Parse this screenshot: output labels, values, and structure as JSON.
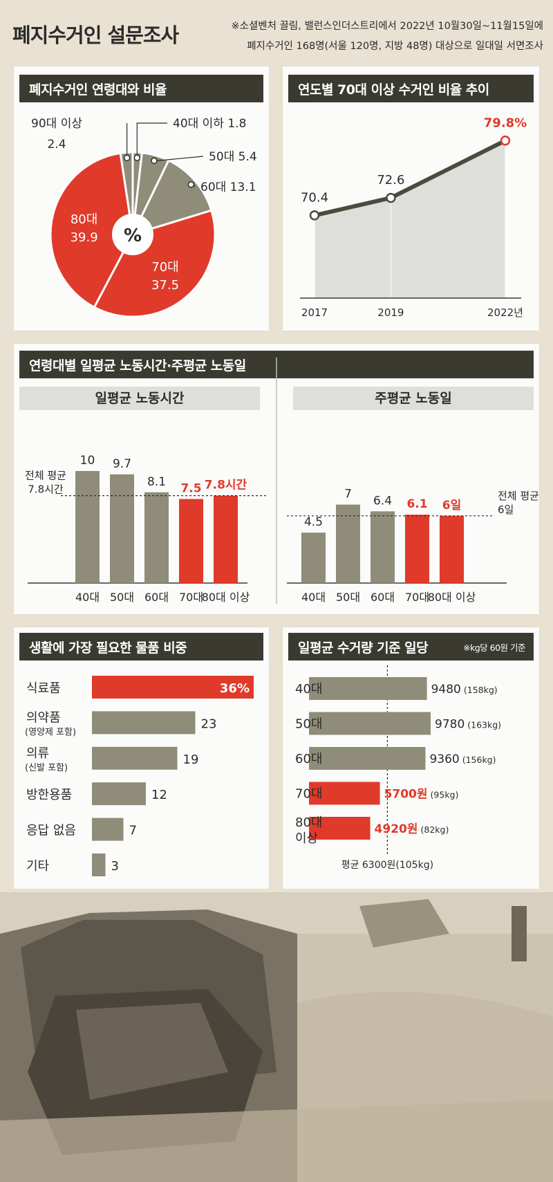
{
  "header": {
    "title": "폐지수거인 설문조사",
    "note_line1": "※소셜벤처 끌림, 밸런스인더스트리에서 2022년 10월30일~11월15일에",
    "note_line2": "폐지수거인 168명(서울 120명, 지방 48명) 대상으로 일대일 서면조사"
  },
  "colors": {
    "red": "#e03a2a",
    "olive": "#8f8c79",
    "dark": "#3b3a31",
    "grid": "#dededb"
  },
  "panels": {
    "age_share": {
      "title": "폐지수거인 연령대와 비율",
      "center_label": "%"
    },
    "trend": {
      "title": "연도별 70대 이상 수거인 비율 추이"
    },
    "labor": {
      "title": "연령대별 일평균 노동시간·주평균 노동일",
      "hours_title": "일평균 노동시간",
      "hours_avg_line1": "전체 평균",
      "hours_avg_line2": "7.8시간",
      "days_title": "주평균 노동일",
      "days_avg_line1": "전체 평균",
      "days_avg_line2": "6일"
    },
    "needs": {
      "title": "생활에 가장 필요한 물품 비중"
    },
    "wage": {
      "title": "일평균 수거량 기준 일당",
      "note": "※kg당 60원 기준",
      "avg_label": "평균 6300원(105kg)"
    }
  },
  "chart_data": [
    {
      "id": "age_share",
      "type": "pie",
      "title": "폐지수거인 연령대와 비율",
      "unit": "%",
      "slices": [
        {
          "label": "40대 이하",
          "value": 1.8,
          "text": "40대 이하 1.8"
        },
        {
          "label": "50대",
          "value": 5.4,
          "text": "50대 5.4"
        },
        {
          "label": "60대",
          "value": 13.1,
          "text": "60대 13.1"
        },
        {
          "label": "70대",
          "value": 37.5,
          "line1": "70대",
          "line2": "37.5"
        },
        {
          "label": "80대",
          "value": 39.9,
          "line1": "80대",
          "line2": "39.9"
        },
        {
          "label": "90대 이상",
          "value": 2.4,
          "line1": "90대 이상",
          "line2": "2.4"
        }
      ],
      "highlight": [
        "70대",
        "80대"
      ]
    },
    {
      "id": "trend",
      "type": "line",
      "title": "연도별 70대 이상 수거인 비율 추이",
      "x": [
        "2017",
        "2019",
        "2022년"
      ],
      "x_numeric": [
        2017,
        2019,
        2022
      ],
      "values": [
        70.4,
        72.6,
        79.8
      ],
      "value_labels": [
        "70.4",
        "72.6",
        "79.8%"
      ],
      "highlight_last": true
    },
    {
      "id": "hours",
      "type": "bar",
      "title": "일평균 노동시간",
      "categories": [
        "40대",
        "50대",
        "60대",
        "70대",
        "80대 이상"
      ],
      "values": [
        10,
        9.7,
        8.1,
        7.5,
        7.8
      ],
      "value_labels": [
        "10",
        "9.7",
        "8.1",
        "7.5",
        "7.8시간"
      ],
      "highlight": [
        false,
        false,
        false,
        true,
        true
      ],
      "average": 7.8,
      "ylim": [
        0,
        10.5
      ]
    },
    {
      "id": "days",
      "type": "bar",
      "title": "주평균 노동일",
      "categories": [
        "40대",
        "50대",
        "60대",
        "70대",
        "80대 이상"
      ],
      "values": [
        4.5,
        7,
        6.4,
        6.1,
        6
      ],
      "value_labels": [
        "4.5",
        "7",
        "6.4",
        "6.1",
        "6일"
      ],
      "highlight": [
        false,
        false,
        false,
        true,
        true
      ],
      "average": 6,
      "ylim": [
        0,
        10.5
      ]
    },
    {
      "id": "needs",
      "type": "bar",
      "orientation": "horizontal",
      "title": "생활에 가장 필요한 물품 비중",
      "items": [
        {
          "label": "식료품",
          "sub": "",
          "value": 36,
          "text": "36%",
          "highlight": true
        },
        {
          "label": "의약품",
          "sub": "(영양제 포함)",
          "value": 23,
          "text": "23",
          "highlight": false
        },
        {
          "label": "의류",
          "sub": "(신발 포함)",
          "value": 19,
          "text": "19",
          "highlight": false
        },
        {
          "label": "방한용품",
          "sub": "",
          "value": 12,
          "text": "12",
          "highlight": false
        },
        {
          "label": "응답 없음",
          "sub": "",
          "value": 7,
          "text": "7",
          "highlight": false
        },
        {
          "label": "기타",
          "sub": "",
          "value": 3,
          "text": "3",
          "highlight": false
        }
      ],
      "xlim": [
        0,
        36
      ]
    },
    {
      "id": "wage",
      "type": "bar",
      "orientation": "horizontal",
      "title": "일평균 수거량 기준 일당",
      "items": [
        {
          "label": "40대",
          "label2": "",
          "value": 9480,
          "amount": "9480",
          "kg": "(158kg)",
          "highlight": false
        },
        {
          "label": "50대",
          "label2": "",
          "value": 9780,
          "amount": "9780",
          "kg": "(163kg)",
          "highlight": false
        },
        {
          "label": "60대",
          "label2": "",
          "value": 9360,
          "amount": "9360",
          "kg": "(156kg)",
          "highlight": false
        },
        {
          "label": "70대",
          "label2": "",
          "value": 5700,
          "amount": "5700원",
          "kg": "(95kg)",
          "highlight": true
        },
        {
          "label": "80대",
          "label2": "이상",
          "value": 4920,
          "amount": "4920원",
          "kg": "(82kg)",
          "highlight": true
        }
      ],
      "average": 6300,
      "xlim": [
        0,
        9780
      ]
    }
  ]
}
